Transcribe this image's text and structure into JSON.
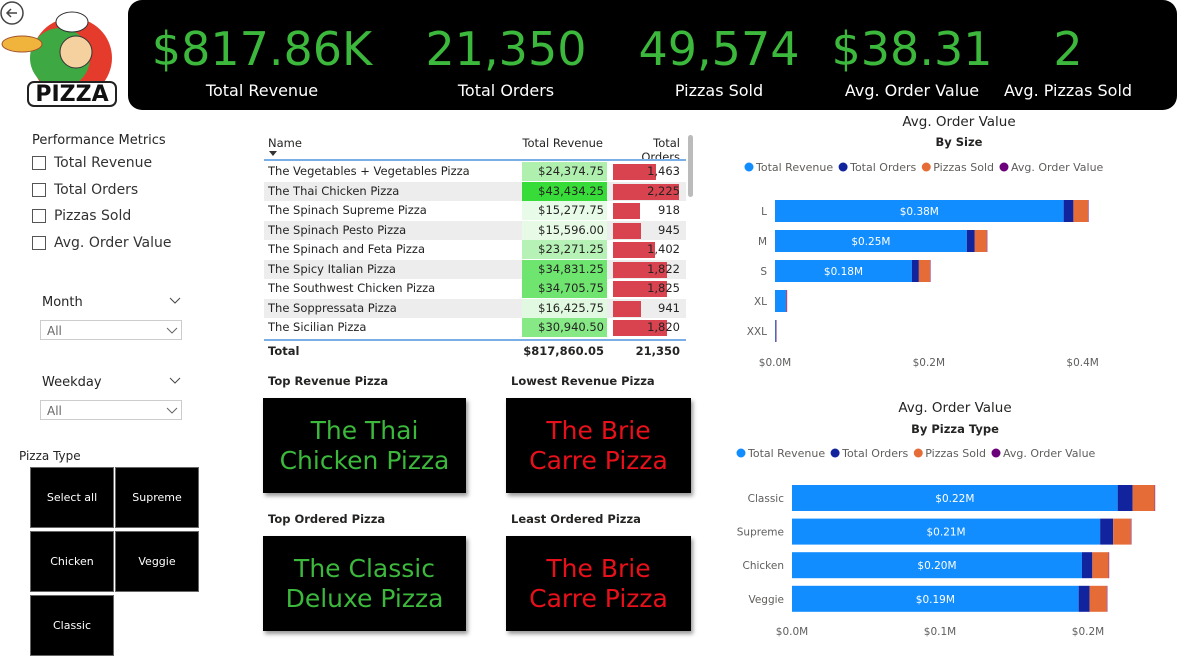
{
  "logo": {
    "text": "PIZZA"
  },
  "kpis": [
    {
      "value": "$817.86K",
      "label": "Total Revenue"
    },
    {
      "value": "21,350",
      "label": "Total Orders"
    },
    {
      "value": "49,574",
      "label": "Pizzas Sold"
    },
    {
      "value": "$38.31",
      "label": "Avg. Order Value"
    },
    {
      "value": "2",
      "label": "Avg. Pizzas Sold"
    }
  ],
  "filters": {
    "metrics": {
      "title": "Performance Metrics",
      "options": [
        "Total Revenue",
        "Total Orders",
        "Pizzas Sold",
        "Avg. Order Value"
      ]
    },
    "month": {
      "title": "Month",
      "selection": "All"
    },
    "weekday": {
      "title": "Weekday",
      "selection": "All"
    },
    "pizza_type": {
      "title": "Pizza Type",
      "options": [
        "Select all",
        "Supreme",
        "Chicken",
        "Veggie",
        "Classic"
      ]
    }
  },
  "table": {
    "columns": [
      "Name",
      "Total Revenue",
      "Total Orders"
    ],
    "rows": [
      {
        "name": "The Vegetables + Vegetables Pizza",
        "revenue": {
          "value": 24374.75,
          "label": "$24,374.75"
        },
        "orders": {
          "value": 1463,
          "label": "1,463"
        }
      },
      {
        "name": "The Thai Chicken Pizza",
        "revenue": {
          "value": 43434.25,
          "label": "$43,434.25"
        },
        "orders": {
          "value": 2225,
          "label": "2,225"
        }
      },
      {
        "name": "The Spinach Supreme Pizza",
        "revenue": {
          "value": 15277.75,
          "label": "$15,277.75"
        },
        "orders": 918
      },
      {
        "name": "The Spinach Pesto Pizza",
        "revenue": {
          "value": 15596.0,
          "label": "$15,596.00"
        },
        "orders": 945
      },
      {
        "name": "The Spinach and Feta Pizza",
        "revenue": {
          "value": 23271.25,
          "label": "$23,271.25"
        },
        "orders": {
          "value": 1402,
          "label": "1,402"
        }
      },
      {
        "name": "The Spicy Italian Pizza",
        "revenue": {
          "value": 34831.25,
          "label": "$34,831.25"
        },
        "orders": {
          "value": 1822,
          "label": "1,822"
        }
      },
      {
        "name": "The Southwest Chicken Pizza",
        "revenue": {
          "value": 34705.75,
          "label": "$34,705.75"
        },
        "orders": {
          "value": 1825,
          "label": "1,825"
        }
      },
      {
        "name": "The Soppressata Pizza",
        "revenue": {
          "value": 16425.75,
          "label": "$16,425.75"
        },
        "orders": 941
      },
      {
        "name": "The Sicilian Pizza",
        "revenue": {
          "value": 30940.5,
          "label": "$30,940.50"
        },
        "orders": {
          "value": 1820,
          "label": "1,820"
        }
      }
    ],
    "total": {
      "label": "Total",
      "revenue": "$817,860.05",
      "orders": "21,350"
    }
  },
  "cards": [
    {
      "title": "Top Revenue Pizza",
      "value": "The Thai Chicken Pizza",
      "color": "#3cb83c"
    },
    {
      "title": "Lowest Revenue Pizza",
      "value": "The Brie Carre Pizza",
      "color": "#e8101a"
    },
    {
      "title": "Top Ordered Pizza",
      "value": "The Classic Deluxe Pizza",
      "color": "#3cb83c"
    },
    {
      "title": "Least Ordered Pizza",
      "value": "The Brie Carre Pizza",
      "color": "#e8101a"
    }
  ],
  "chart_data": [
    {
      "type": "bar",
      "orientation": "horizontal",
      "stacked": true,
      "title": "Avg. Order Value",
      "subtitle": "By Size",
      "categories": [
        "L",
        "M",
        "S",
        "XL",
        "XXL"
      ],
      "series": [
        {
          "name": "Total Revenue",
          "color": "#118dff",
          "values": [
            375318.7,
            249382.25,
            178076.5,
            14076,
            1006.6
          ],
          "value_labels": [
            "$0.38M",
            "$0.25M",
            "$0.18M",
            null,
            null
          ]
        },
        {
          "name": "Total Orders",
          "color": "#12239e",
          "values": [
            12700,
            10400,
            9000,
            500,
            28
          ]
        },
        {
          "name": "Pizzas Sold",
          "color": "#e66c37",
          "values": [
            18956,
            15635,
            14403,
            552,
            28
          ]
        },
        {
          "name": "Avg. Order Value",
          "color": "#6b007b",
          "values": [
            29.5,
            24,
            19.8,
            25.9,
            36
          ]
        }
      ],
      "xlim": [
        0,
        420000
      ],
      "xticks": [
        {
          "value": 0,
          "label": "$0.0M"
        },
        {
          "value": 200000,
          "label": "$0.2M"
        },
        {
          "value": 400000,
          "label": "$0.4M"
        }
      ]
    },
    {
      "type": "bar",
      "orientation": "horizontal",
      "stacked": true,
      "title": "Avg. Order Value",
      "subtitle": "By Pizza Type",
      "categories": [
        "Classic",
        "Supreme",
        "Chicken",
        "Veggie"
      ],
      "series": [
        {
          "name": "Total Revenue",
          "color": "#118dff",
          "values": [
            220053.1,
            208197,
            195919.5,
            193690.45
          ],
          "value_labels": [
            "$0.22M",
            "$0.21M",
            "$0.20M",
            "$0.19M"
          ]
        },
        {
          "name": "Total Orders",
          "color": "#12239e",
          "values": [
            10100,
            8800,
            7000,
            7400
          ]
        },
        {
          "name": "Pizzas Sold",
          "color": "#e66c37",
          "values": [
            14888,
            11987,
            11050,
            11649
          ]
        },
        {
          "name": "Avg. Order Value",
          "color": "#6b007b",
          "values": [
            21.8,
            23.7,
            28,
            26.2
          ]
        }
      ],
      "xlim": [
        0,
        250000
      ],
      "xticks": [
        {
          "value": 0,
          "label": "$0.0M"
        },
        {
          "value": 100000,
          "label": "$0.1M"
        },
        {
          "value": 200000,
          "label": "$0.2M"
        }
      ]
    }
  ]
}
